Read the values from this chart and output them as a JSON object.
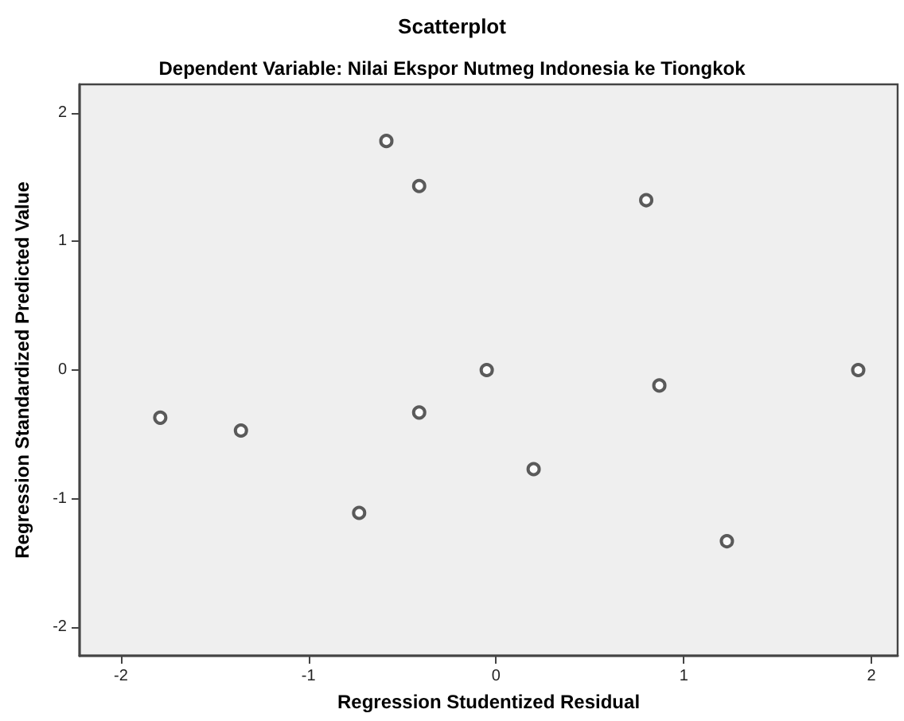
{
  "chart_data": {
    "type": "scatter",
    "title": "Scatterplot",
    "subtitle": "Dependent Variable: Nilai Ekspor Nutmeg Indonesia ke Tiongkok",
    "xlabel": "Regression Studentized Residual",
    "ylabel": "Regression Standardized Predicted Value",
    "x": [
      -0.585,
      -0.41,
      0.8,
      -1.79,
      -1.36,
      -0.73,
      -0.41,
      -0.05,
      0.2,
      0.87,
      1.23,
      1.93
    ],
    "series": [
      {
        "color": "#333333",
        "values": [
          1.78,
          1.43,
          1.32,
          -0.37,
          -0.47,
          -1.11,
          -0.33,
          0.0,
          -0.77,
          -0.12,
          -1.33,
          0.0
        ]
      }
    ],
    "xlim": [
      -2.22,
      2.14
    ],
    "ylim": [
      -2.22,
      2.22
    ],
    "xticks": [
      -2,
      -1,
      0,
      1,
      2
    ],
    "yticks": [
      -2,
      -1,
      0,
      1,
      2
    ],
    "grid": false,
    "marker": "circle"
  }
}
